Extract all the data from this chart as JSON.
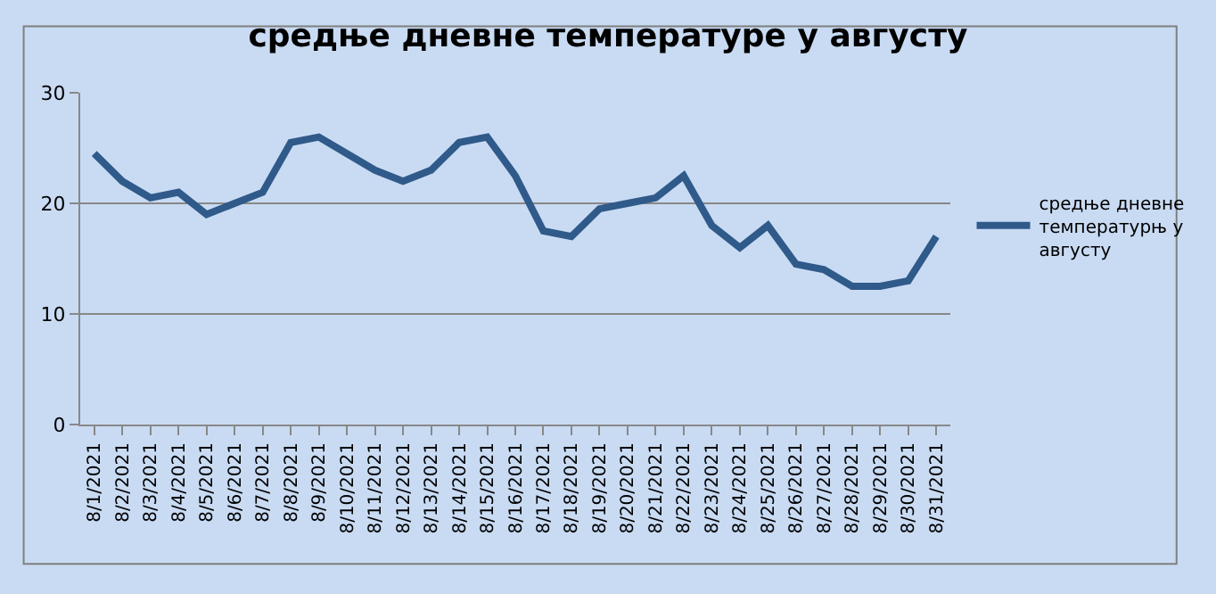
{
  "chart_data": {
    "type": "line",
    "title": "средње дневне температуре у августу",
    "categories": [
      "8/1/2021",
      "8/2/2021",
      "8/3/2021",
      "8/4/2021",
      "8/5/2021",
      "8/6/2021",
      "8/7/2021",
      "8/8/2021",
      "8/9/2021",
      "8/10/2021",
      "8/11/2021",
      "8/12/2021",
      "8/13/2021",
      "8/14/2021",
      "8/15/2021",
      "8/16/2021",
      "8/17/2021",
      "8/18/2021",
      "8/19/2021",
      "8/20/2021",
      "8/21/2021",
      "8/22/2021",
      "8/23/2021",
      "8/24/2021",
      "8/25/2021",
      "8/26/2021",
      "8/27/2021",
      "8/28/2021",
      "8/29/2021",
      "8/30/2021",
      "8/31/2021"
    ],
    "series": [
      {
        "name": "средње дневне температурњ у августу",
        "color": "#2f5a8a",
        "values": [
          24.5,
          22,
          20.5,
          21,
          19,
          20,
          21,
          25.5,
          26,
          24.5,
          23,
          22,
          23,
          25.5,
          26,
          22.5,
          17.5,
          17,
          19.5,
          20,
          20.5,
          22.5,
          18,
          16,
          18,
          14.5,
          14,
          12.5,
          12.5,
          13,
          17
        ]
      }
    ],
    "ylim": [
      0,
      30
    ],
    "yticks": [
      0,
      10,
      20,
      30
    ],
    "grid": "y",
    "legend": "right",
    "marker": "none",
    "line_style": "solid"
  }
}
